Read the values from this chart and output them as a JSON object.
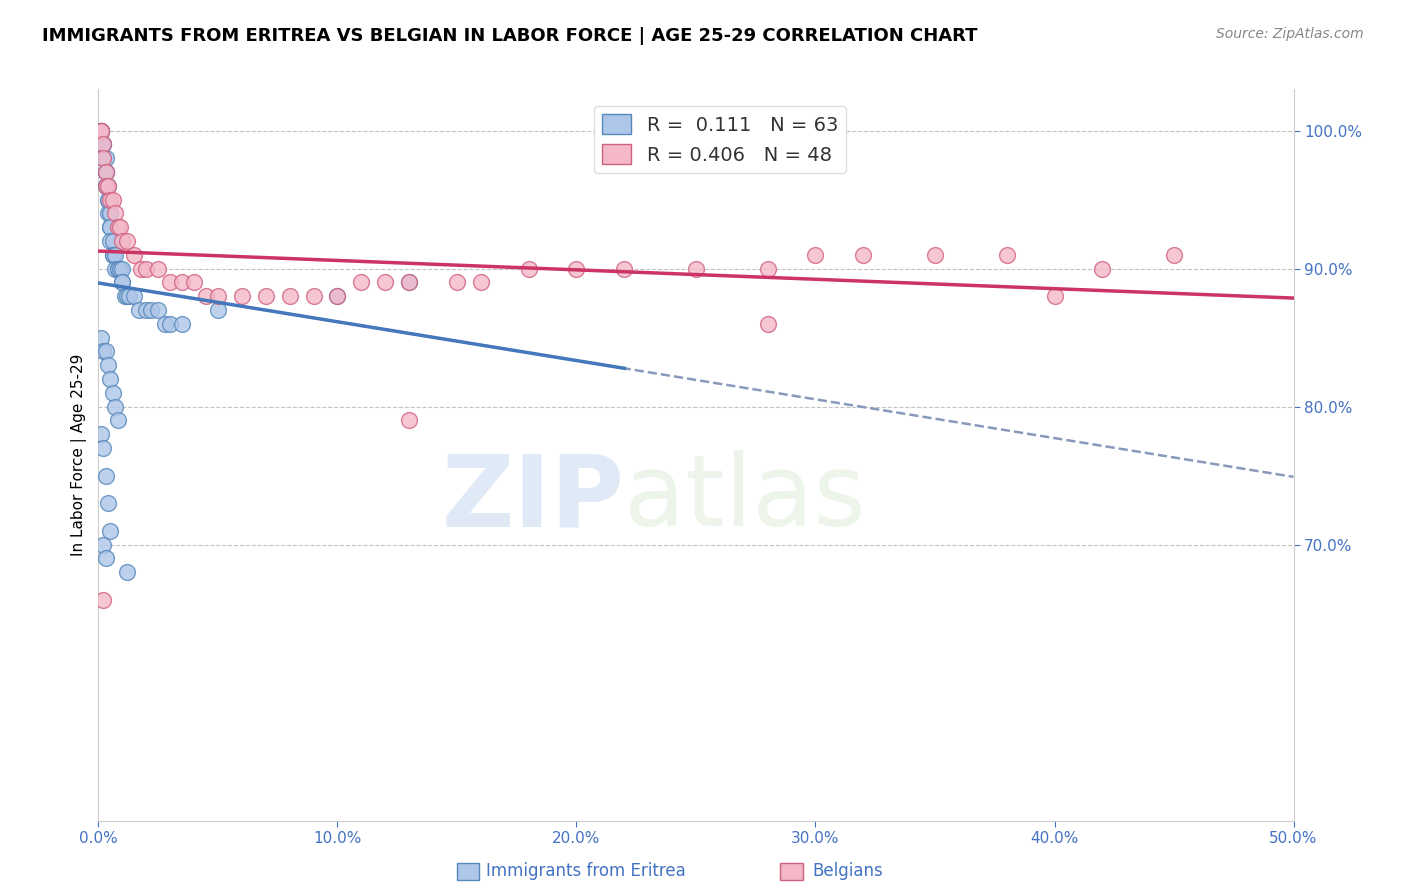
{
  "title": "IMMIGRANTS FROM ERITREA VS BELGIAN IN LABOR FORCE | AGE 25-29 CORRELATION CHART",
  "source": "Source: ZipAtlas.com",
  "ylabel": "In Labor Force | Age 25-29",
  "xlim": [
    0.0,
    0.5
  ],
  "ylim": [
    0.5,
    1.03
  ],
  "xticks": [
    0.0,
    0.1,
    0.2,
    0.3,
    0.4,
    0.5
  ],
  "yticks": [
    0.7,
    0.8,
    0.9,
    1.0
  ],
  "blue_color": "#aec6e8",
  "pink_color": "#f4b8c8",
  "blue_edge": "#5588bb",
  "pink_edge": "#d06080",
  "trend_blue_color": "#4477bb",
  "trend_pink_color": "#cc3366",
  "trend_dashed_color": "#8899bb",
  "R_blue": 0.111,
  "N_blue": 63,
  "R_pink": 0.406,
  "N_pink": 48,
  "watermark_ZIP": "ZIP",
  "watermark_atlas": "atlas",
  "blue_x": [
    0.001,
    0.001,
    0.001,
    0.001,
    0.001,
    0.001,
    0.002,
    0.002,
    0.002,
    0.003,
    0.003,
    0.003,
    0.003,
    0.003,
    0.004,
    0.004,
    0.004,
    0.004,
    0.005,
    0.005,
    0.005,
    0.005,
    0.006,
    0.006,
    0.006,
    0.007,
    0.007,
    0.008,
    0.008,
    0.009,
    0.01,
    0.01,
    0.01,
    0.011,
    0.012,
    0.013,
    0.015,
    0.017,
    0.02,
    0.022,
    0.025,
    0.028,
    0.03,
    0.035,
    0.001,
    0.002,
    0.003,
    0.004,
    0.005,
    0.006,
    0.007,
    0.008,
    0.001,
    0.002,
    0.003,
    0.004,
    0.005,
    0.002,
    0.003,
    0.012,
    0.05,
    0.1,
    0.13
  ],
  "blue_y": [
    1.0,
    1.0,
    1.0,
    1.0,
    0.99,
    0.99,
    0.99,
    0.99,
    0.98,
    0.98,
    0.97,
    0.97,
    0.96,
    0.96,
    0.96,
    0.95,
    0.95,
    0.94,
    0.94,
    0.93,
    0.93,
    0.92,
    0.92,
    0.91,
    0.91,
    0.91,
    0.9,
    0.9,
    0.9,
    0.9,
    0.9,
    0.89,
    0.89,
    0.88,
    0.88,
    0.88,
    0.88,
    0.87,
    0.87,
    0.87,
    0.87,
    0.86,
    0.86,
    0.86,
    0.85,
    0.84,
    0.84,
    0.83,
    0.82,
    0.81,
    0.8,
    0.79,
    0.78,
    0.77,
    0.75,
    0.73,
    0.71,
    0.7,
    0.69,
    0.68,
    0.87,
    0.88,
    0.89
  ],
  "pink_x": [
    0.001,
    0.001,
    0.002,
    0.002,
    0.003,
    0.003,
    0.004,
    0.005,
    0.006,
    0.007,
    0.008,
    0.009,
    0.01,
    0.012,
    0.015,
    0.018,
    0.02,
    0.025,
    0.03,
    0.035,
    0.04,
    0.045,
    0.05,
    0.06,
    0.07,
    0.08,
    0.09,
    0.1,
    0.11,
    0.12,
    0.13,
    0.15,
    0.16,
    0.18,
    0.2,
    0.22,
    0.25,
    0.28,
    0.3,
    0.32,
    0.35,
    0.38,
    0.4,
    0.42,
    0.45,
    0.002,
    0.13,
    0.28
  ],
  "pink_y": [
    1.0,
    1.0,
    0.99,
    0.98,
    0.97,
    0.96,
    0.96,
    0.95,
    0.95,
    0.94,
    0.93,
    0.93,
    0.92,
    0.92,
    0.91,
    0.9,
    0.9,
    0.9,
    0.89,
    0.89,
    0.89,
    0.88,
    0.88,
    0.88,
    0.88,
    0.88,
    0.88,
    0.88,
    0.89,
    0.89,
    0.89,
    0.89,
    0.89,
    0.9,
    0.9,
    0.9,
    0.9,
    0.9,
    0.91,
    0.91,
    0.91,
    0.91,
    0.88,
    0.9,
    0.91,
    0.66,
    0.79,
    0.86
  ]
}
